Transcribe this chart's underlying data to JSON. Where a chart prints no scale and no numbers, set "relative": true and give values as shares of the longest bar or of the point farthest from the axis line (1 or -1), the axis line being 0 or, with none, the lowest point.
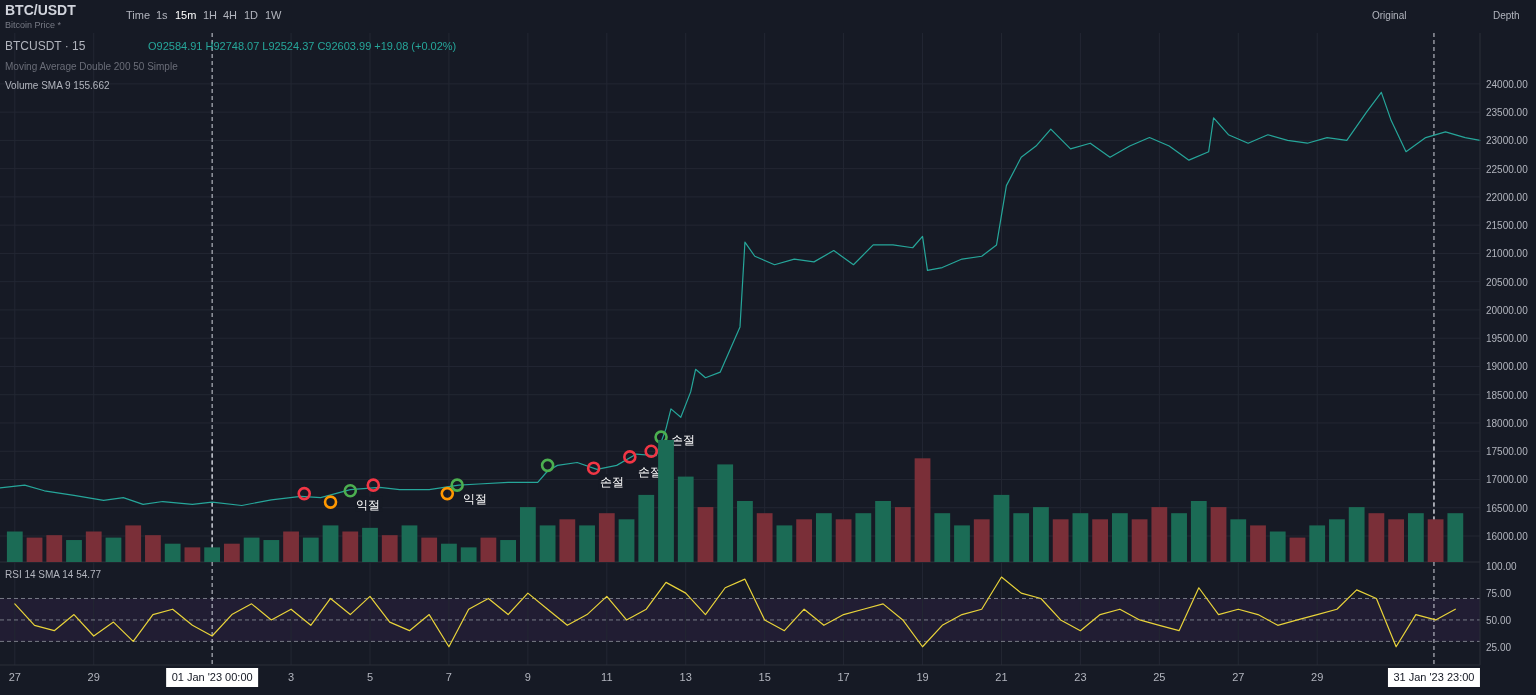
{
  "chart_data": [
    {
      "type": "line",
      "title": "BTC/USDT",
      "subtitle": "Bitcoin Price *",
      "annotations": [
        "BTCUSDT · 15",
        "O92584.91 H92748.07 L92524.37 C92603.99 +19.08 (+0.02%)",
        "Moving Average Double 200 50 Simple",
        "Time",
        "1s",
        "15m",
        "1H",
        "4H",
        "1D",
        "1W",
        "Original",
        "Depth",
        {
          "text": "익절",
          "x": "2023-01-04T12:00",
          "y": 16800
        },
        {
          "text": "익절",
          "x": "2023-01-07T05:00",
          "y": 16900
        },
        {
          "text": "손절",
          "x": "2023-01-10T16:00",
          "y": 17200
        },
        {
          "text": "손절",
          "x": "2023-01-12T03:00",
          "y": 17500
        },
        {
          "text": "손절",
          "x": "2023-01-12T09:00",
          "y": 17750
        }
      ],
      "series": [
        {
          "color": "#26a69a",
          "x": [
            "2022-12-26T15:00",
            "2022-12-27T06:00",
            "2022-12-27T18:00",
            "2022-12-28T12:00",
            "2022-12-29T06:00",
            "2022-12-29T18:00",
            "2022-12-30T06:00",
            "2022-12-30T18:00",
            "2022-12-31T12:00",
            "2023-01-01T00:00",
            "2023-01-01T18:00",
            "2023-01-02T12:00",
            "2023-01-03T06:00",
            "2023-01-03T18:00",
            "2023-01-04T12:00",
            "2023-01-05T06:00",
            "2023-01-05T18:00",
            "2023-01-06T12:00",
            "2023-01-07T06:00",
            "2023-01-07T18:00",
            "2023-01-08T12:00",
            "2023-01-09T06:00",
            "2023-01-09T12:00",
            "2023-01-09T18:00",
            "2023-01-10T06:00",
            "2023-01-10T18:00",
            "2023-01-11T06:00",
            "2023-01-11T18:00",
            "2023-01-12T06:00",
            "2023-01-12T12:00",
            "2023-01-12T15:00",
            "2023-01-12T21:00",
            "2023-01-13T03:00",
            "2023-01-13T06:00",
            "2023-01-13T12:00",
            "2023-01-13T21:00",
            "2023-01-14T03:00",
            "2023-01-14T09:00",
            "2023-01-14T12:00",
            "2023-01-14T18:00",
            "2023-01-15T06:00",
            "2023-01-15T18:00",
            "2023-01-16T06:00",
            "2023-01-16T18:00",
            "2023-01-17T06:00",
            "2023-01-17T18:00",
            "2023-01-18T06:00",
            "2023-01-18T18:00",
            "2023-01-19T00:00",
            "2023-01-19T03:00",
            "2023-01-19T12:00",
            "2023-01-20T00:00",
            "2023-01-20T12:00",
            "2023-01-20T21:00",
            "2023-01-21T03:00",
            "2023-01-21T12:00",
            "2023-01-21T21:00",
            "2023-01-22T06:00",
            "2023-01-22T18:00",
            "2023-01-23T06:00",
            "2023-01-23T18:00",
            "2023-01-24T06:00",
            "2023-01-24T18:00",
            "2023-01-25T06:00",
            "2023-01-25T18:00",
            "2023-01-26T06:00",
            "2023-01-26T09:00",
            "2023-01-26T18:00",
            "2023-01-27T06:00",
            "2023-01-27T18:00",
            "2023-01-28T06:00",
            "2023-01-28T18:00",
            "2023-01-29T06:00",
            "2023-01-29T18:00",
            "2023-01-30T06:00",
            "2023-01-30T15:00",
            "2023-01-30T21:00",
            "2023-01-31T06:00",
            "2023-01-31T18:00",
            "2023-02-01T06:00",
            "2023-02-01T18:00",
            "2023-02-02T03:00"
          ],
          "values": [
            16850,
            16900,
            16800,
            16720,
            16630,
            16680,
            16560,
            16610,
            16560,
            16600,
            16540,
            16640,
            16700,
            16680,
            16820,
            16860,
            16820,
            16820,
            16900,
            16920,
            16950,
            16950,
            17150,
            17250,
            17300,
            17180,
            17250,
            17450,
            17420,
            17900,
            18250,
            18100,
            18550,
            18950,
            18800,
            18900,
            19300,
            19700,
            21200,
            20950,
            20800,
            20900,
            20850,
            21050,
            20800,
            21150,
            21150,
            21100,
            21300,
            20700,
            20750,
            20900,
            20950,
            21150,
            22200,
            22700,
            22900,
            23200,
            22850,
            22950,
            22700,
            22900,
            23050,
            22900,
            22650,
            22800,
            23400,
            23100,
            22950,
            23100,
            23000,
            22950,
            23050,
            23000,
            23500,
            23850,
            23350,
            22800,
            23050,
            23150,
            23050,
            23000
          ]
        },
        {
          "type": "scatter",
          "marker": "circle",
          "color": "#f23645",
          "x": [
            "2023-01-03T08:00",
            "2023-01-05T02:00",
            "2023-01-10T16:00",
            "2023-01-11T14:00",
            "2023-01-12T03:00"
          ],
          "values": [
            16750,
            16900,
            17200,
            17400,
            17500
          ]
        },
        {
          "type": "scatter",
          "marker": "circle",
          "color": "#ff9800",
          "x": [
            "2023-01-04T00:00",
            "2023-01-06T23:00"
          ],
          "values": [
            16600,
            16750
          ]
        },
        {
          "type": "scatter",
          "marker": "circle",
          "color": "#4caf50",
          "x": [
            "2023-01-04T12:00",
            "2023-01-07T05:00",
            "2023-01-09T12:00",
            "2023-01-12T09:00"
          ],
          "values": [
            16800,
            16900,
            17250,
            17750
          ]
        }
      ],
      "grid": true,
      "tick_labels": "y",
      "xlim": [
        "2022-12-26T15:00",
        "2023-02-02T03:00"
      ],
      "xticks": [
        {
          "value": "2022-12-27",
          "label": null
        },
        {
          "value": "2022-12-29",
          "label": null
        },
        {
          "value": "2023-01-03",
          "label": null
        },
        {
          "value": "2023-01-05",
          "label": null
        },
        {
          "value": "2023-01-07",
          "label": null
        },
        {
          "value": "2023-01-09",
          "label": null
        },
        {
          "value": "2023-01-11",
          "label": null
        },
        {
          "value": "2023-01-13",
          "label": null
        },
        {
          "value": "2023-01-15",
          "label": null
        },
        {
          "value": "2023-01-17",
          "label": null
        },
        {
          "value": "2023-01-19",
          "label": null
        },
        {
          "value": "2023-01-21",
          "label": null
        },
        {
          "value": "2023-01-23",
          "label": null
        },
        {
          "value": "2023-01-25",
          "label": null
        },
        {
          "value": "2023-01-27",
          "label": null
        },
        {
          "value": "2023-01-29",
          "label": null
        }
      ],
      "ylim": [
        15540,
        24900
      ],
      "yticks": [
        {
          "value": 16000,
          "label": "16000.00"
        },
        {
          "value": 16500,
          "label": "16500.00"
        },
        {
          "value": 17000,
          "label": "17000.00"
        },
        {
          "value": 17500,
          "label": "17500.00"
        },
        {
          "value": 18000,
          "label": "18000.00"
        },
        {
          "value": 18500,
          "label": "18500.00"
        },
        {
          "value": 19000,
          "label": "19000.00"
        },
        {
          "value": 19500,
          "label": "19500.00"
        },
        {
          "value": 20000,
          "label": "20000.00"
        },
        {
          "value": 20500,
          "label": "20500.00"
        },
        {
          "value": 21000,
          "label": "21000.00"
        },
        {
          "value": 21500,
          "label": "21500.00"
        },
        {
          "value": 22000,
          "label": "22000.00"
        },
        {
          "value": 22500,
          "label": "22500.00"
        },
        {
          "value": 23000,
          "label": "23000.00"
        },
        {
          "value": 23500,
          "label": "23500.00"
        },
        {
          "value": 24000,
          "label": "24000.00"
        }
      ],
      "ref_lines": [
        {
          "axis": "x",
          "value": "2023-01-01T00:00",
          "line_style": "dashed",
          "color": "#d1d4dc"
        },
        {
          "axis": "x",
          "value": "2023-01-31T23:00",
          "line_style": "dashed",
          "color": "#d1d4dc"
        }
      ]
    },
    {
      "type": "bar",
      "title": "Volume SMA 9 155.662",
      "relative": true,
      "tick_labels": false,
      "xlim": [
        "2022-12-26T15:00",
        "2023-02-02T03:00"
      ],
      "x": [
        "2022-12-27T00:00",
        "2022-12-27T12:00",
        "2022-12-28T00:00",
        "2022-12-28T12:00",
        "2022-12-29T00:00",
        "2022-12-29T12:00",
        "2022-12-30T00:00",
        "2022-12-30T12:00",
        "2022-12-31T00:00",
        "2022-12-31T12:00",
        "2023-01-01T00:00",
        "2023-01-01T12:00",
        "2023-01-02T00:00",
        "2023-01-02T12:00",
        "2023-01-03T00:00",
        "2023-01-03T12:00",
        "2023-01-04T00:00",
        "2023-01-04T12:00",
        "2023-01-05T00:00",
        "2023-01-05T12:00",
        "2023-01-06T00:00",
        "2023-01-06T12:00",
        "2023-01-07T00:00",
        "2023-01-07T12:00",
        "2023-01-08T00:00",
        "2023-01-08T12:00",
        "2023-01-09T00:00",
        "2023-01-09T12:00",
        "2023-01-10T00:00",
        "2023-01-10T12:00",
        "2023-01-11T00:00",
        "2023-01-11T12:00",
        "2023-01-12T00:00",
        "2023-01-12T12:00",
        "2023-01-13T00:00",
        "2023-01-13T12:00",
        "2023-01-14T00:00",
        "2023-01-14T12:00",
        "2023-01-15T00:00",
        "2023-01-15T12:00",
        "2023-01-16T00:00",
        "2023-01-16T12:00",
        "2023-01-17T00:00",
        "2023-01-17T12:00",
        "2023-01-18T00:00",
        "2023-01-18T12:00",
        "2023-01-19T00:00",
        "2023-01-19T12:00",
        "2023-01-20T00:00",
        "2023-01-20T12:00",
        "2023-01-21T00:00",
        "2023-01-21T12:00",
        "2023-01-22T00:00",
        "2023-01-22T12:00",
        "2023-01-23T00:00",
        "2023-01-23T12:00",
        "2023-01-24T00:00",
        "2023-01-24T12:00",
        "2023-01-25T00:00",
        "2023-01-25T12:00",
        "2023-01-26T00:00",
        "2023-01-26T12:00",
        "2023-01-27T00:00",
        "2023-01-27T12:00",
        "2023-01-28T00:00",
        "2023-01-28T12:00",
        "2023-01-29T00:00",
        "2023-01-29T12:00",
        "2023-01-30T00:00",
        "2023-01-30T12:00",
        "2023-01-31T00:00",
        "2023-01-31T12:00",
        "2023-02-01T00:00",
        "2023-02-01T12:00"
      ],
      "series": [
        {
          "values": [
            0.25,
            0.2,
            0.22,
            0.18,
            0.25,
            0.2,
            0.3,
            0.22,
            0.15,
            0.12,
            0.12,
            0.15,
            0.2,
            0.18,
            0.25,
            0.2,
            0.3,
            0.25,
            0.28,
            0.22,
            0.3,
            0.2,
            0.15,
            0.12,
            0.2,
            0.18,
            0.45,
            0.3,
            0.35,
            0.3,
            0.4,
            0.35,
            0.55,
            1.0,
            0.7,
            0.45,
            0.8,
            0.5,
            0.4,
            0.3,
            0.35,
            0.4,
            0.35,
            0.4,
            0.5,
            0.45,
            0.85,
            0.4,
            0.3,
            0.35,
            0.55,
            0.4,
            0.45,
            0.35,
            0.4,
            0.35,
            0.4,
            0.35,
            0.45,
            0.4,
            0.5,
            0.45,
            0.35,
            0.3,
            0.25,
            0.2,
            0.3,
            0.35,
            0.45,
            0.4,
            0.35,
            0.4,
            0.35,
            0.4
          ],
          "colors": [
            "#1b6b55",
            "#7a2f38",
            "#7a2f38",
            "#1b6b55",
            "#7a2f38",
            "#1b6b55",
            "#7a2f38",
            "#7a2f38",
            "#1b6b55",
            "#7a2f38",
            "#1b6b55",
            "#7a2f38",
            "#1b6b55",
            "#1b6b55",
            "#7a2f38",
            "#1b6b55",
            "#1b6b55",
            "#7a2f38",
            "#1b6b55",
            "#7a2f38",
            "#1b6b55",
            "#7a2f38",
            "#1b6b55",
            "#1b6b55",
            "#7a2f38",
            "#1b6b55",
            "#1b6b55",
            "#1b6b55",
            "#7a2f38",
            "#1b6b55",
            "#7a2f38",
            "#1b6b55",
            "#1b6b55",
            "#1b6b55",
            "#1b6b55",
            "#7a2f38",
            "#1b6b55",
            "#1b6b55",
            "#7a2f38",
            "#1b6b55",
            "#7a2f38",
            "#1b6b55",
            "#7a2f38",
            "#1b6b55",
            "#1b6b55",
            "#7a2f38",
            "#7a2f38",
            "#1b6b55",
            "#1b6b55",
            "#7a2f38",
            "#1b6b55",
            "#1b6b55",
            "#1b6b55",
            "#7a2f38",
            "#1b6b55",
            "#7a2f38",
            "#1b6b55",
            "#7a2f38",
            "#7a2f38",
            "#1b6b55",
            "#1b6b55",
            "#7a2f38",
            "#1b6b55",
            "#7a2f38",
            "#1b6b55",
            "#7a2f38",
            "#1b6b55",
            "#1b6b55",
            "#1b6b55",
            "#7a2f38",
            "#7a2f38",
            "#1b6b55",
            "#7a2f38",
            "#1b6b55"
          ]
        }
      ],
      "ref_lines": [
        {
          "axis": "x",
          "value": "2023-01-01T00:00",
          "line_style": "dashed",
          "color": "#d1d4dc"
        },
        {
          "axis": "x",
          "value": "2023-01-31T23:00",
          "line_style": "dashed",
          "color": "#d1d4dc"
        }
      ]
    },
    {
      "type": "line",
      "title": "RSI 14 SMA 14 54.77",
      "grid": "x",
      "x": [
        "2022-12-27T00:00",
        "2022-12-27T12:00",
        "2022-12-28T00:00",
        "2022-12-28T12:00",
        "2022-12-29T00:00",
        "2022-12-29T12:00",
        "2022-12-30T00:00",
        "2022-12-30T12:00",
        "2022-12-31T00:00",
        "2022-12-31T12:00",
        "2023-01-01T00:00",
        "2023-01-01T12:00",
        "2023-01-02T00:00",
        "2023-01-02T12:00",
        "2023-01-03T00:00",
        "2023-01-03T12:00",
        "2023-01-04T00:00",
        "2023-01-04T12:00",
        "2023-01-05T00:00",
        "2023-01-05T12:00",
        "2023-01-06T00:00",
        "2023-01-06T12:00",
        "2023-01-07T00:00",
        "2023-01-07T12:00",
        "2023-01-08T00:00",
        "2023-01-08T12:00",
        "2023-01-09T00:00",
        "2023-01-09T12:00",
        "2023-01-10T00:00",
        "2023-01-10T12:00",
        "2023-01-11T00:00",
        "2023-01-11T12:00",
        "2023-01-12T00:00",
        "2023-01-12T12:00",
        "2023-01-13T00:00",
        "2023-01-13T12:00",
        "2023-01-14T00:00",
        "2023-01-14T12:00",
        "2023-01-15T00:00",
        "2023-01-15T12:00",
        "2023-01-16T00:00",
        "2023-01-16T12:00",
        "2023-01-17T00:00",
        "2023-01-17T12:00",
        "2023-01-18T00:00",
        "2023-01-18T12:00",
        "2023-01-19T00:00",
        "2023-01-19T12:00",
        "2023-01-20T00:00",
        "2023-01-20T12:00",
        "2023-01-21T00:00",
        "2023-01-21T12:00",
        "2023-01-22T00:00",
        "2023-01-22T12:00",
        "2023-01-23T00:00",
        "2023-01-23T12:00",
        "2023-01-24T00:00",
        "2023-01-24T12:00",
        "2023-01-25T00:00",
        "2023-01-25T12:00",
        "2023-01-26T00:00",
        "2023-01-26T12:00",
        "2023-01-27T00:00",
        "2023-01-27T12:00",
        "2023-01-28T00:00",
        "2023-01-28T12:00",
        "2023-01-29T00:00",
        "2023-01-29T12:00",
        "2023-01-30T00:00",
        "2023-01-30T12:00",
        "2023-01-31T00:00",
        "2023-01-31T12:00",
        "2023-02-01T00:00",
        "2023-02-01T12:00"
      ],
      "series": [
        {
          "color": "#e8d33a",
          "values": [
            65,
            45,
            40,
            55,
            35,
            48,
            30,
            55,
            60,
            45,
            35,
            55,
            65,
            50,
            60,
            45,
            70,
            55,
            72,
            48,
            40,
            55,
            25,
            60,
            70,
            55,
            75,
            60,
            45,
            55,
            72,
            50,
            60,
            85,
            75,
            55,
            80,
            88,
            50,
            40,
            60,
            45,
            55,
            60,
            65,
            50,
            25,
            45,
            55,
            60,
            90,
            75,
            70,
            50,
            40,
            55,
            60,
            50,
            45,
            40,
            80,
            55,
            60,
            55,
            45,
            50,
            55,
            60,
            78,
            70,
            25,
            55,
            50,
            60
          ]
        }
      ],
      "xlim": [
        "2022-12-26T15:00",
        "2023-02-02T03:00"
      ],
      "xticks": [
        {
          "value": "2022-12-27",
          "label": "27"
        },
        {
          "value": "2022-12-29",
          "label": "29"
        },
        {
          "value": "2023-01-03",
          "label": "3"
        },
        {
          "value": "2023-01-05",
          "label": "5"
        },
        {
          "value": "2023-01-07",
          "label": "7"
        },
        {
          "value": "2023-01-09",
          "label": "9"
        },
        {
          "value": "2023-01-11",
          "label": "11"
        },
        {
          "value": "2023-01-13",
          "label": "13"
        },
        {
          "value": "2023-01-15",
          "label": "15"
        },
        {
          "value": "2023-01-17",
          "label": "17"
        },
        {
          "value": "2023-01-19",
          "label": "19"
        },
        {
          "value": "2023-01-21",
          "label": "21"
        },
        {
          "value": "2023-01-23",
          "label": "23"
        },
        {
          "value": "2023-01-25",
          "label": "25"
        },
        {
          "value": "2023-01-27",
          "label": "27"
        },
        {
          "value": "2023-01-29",
          "label": "29"
        }
      ],
      "ylim": [
        8,
        104
      ],
      "yticks": [
        {
          "value": 25,
          "label": "25.00"
        },
        {
          "value": 50,
          "label": "50.00"
        },
        {
          "value": 75,
          "label": "75.00"
        },
        {
          "value": 100,
          "label": "100.00"
        }
      ],
      "bands": [
        {
          "axis": "y",
          "from": 30,
          "to": 70,
          "color": "#211d33"
        }
      ],
      "ref_lines": [
        {
          "axis": "y",
          "value": 70,
          "line_style": "dashed",
          "color": "#787b86"
        },
        {
          "axis": "y",
          "value": 50,
          "line_style": "dashed",
          "color": "#787b86"
        },
        {
          "axis": "y",
          "value": 30,
          "line_style": "dashed",
          "color": "#787b86"
        },
        {
          "axis": "x",
          "value": "2023-01-01T00:00",
          "label": "01 Jan '23  00:00",
          "line_style": "dashed",
          "color": "#d1d4dc"
        },
        {
          "axis": "x",
          "value": "2023-01-31T23:00",
          "label": "31 Jan '23  23:00",
          "line_style": "dashed",
          "color": "#d1d4dc"
        }
      ]
    }
  ]
}
